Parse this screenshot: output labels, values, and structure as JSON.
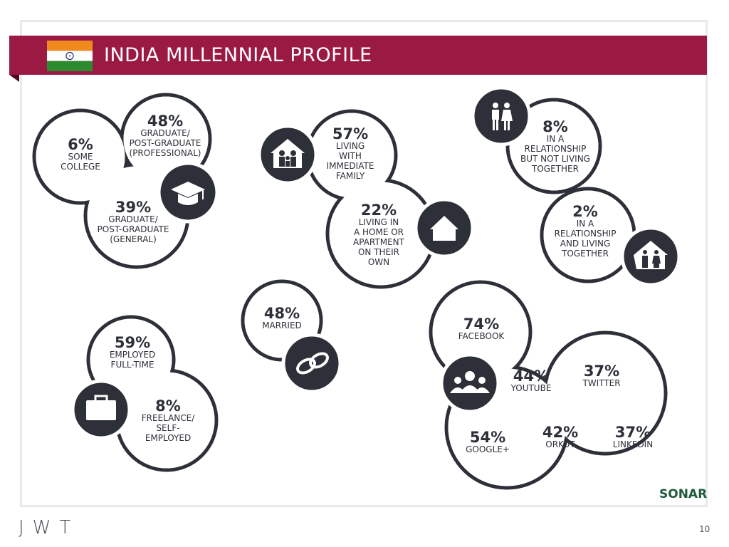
{
  "header": {
    "title": "INDIA MILLENNIAL PROFILE",
    "colors": {
      "banner": "#9b1a43",
      "saffron": "#f08a1c",
      "green": "#2e8a2e",
      "chakra": "#1b2f7a"
    }
  },
  "education": {
    "some_college": {
      "value": "6%",
      "label": "SOME COLLEGE"
    },
    "professional": {
      "value": "48%",
      "label_l1": "GRADUATE/",
      "label_l2": "POST-GRADUATE",
      "label_l3": "(PROFESSIONAL)"
    },
    "general": {
      "value": "39%",
      "label_l1": "GRADUATE/",
      "label_l2": "POST-GRADUATE",
      "label_l3": "(GENERAL)"
    },
    "icon": "graduation-cap-icon"
  },
  "living": {
    "family": {
      "value": "57%",
      "label_l1": "LIVING",
      "label_l2": "WITH",
      "label_l3": "IMMEDIATE",
      "label_l4": "FAMILY"
    },
    "own": {
      "value": "22%",
      "label_l1": "LIVING IN",
      "label_l2": "A HOME OR",
      "label_l3": "APARTMENT",
      "label_l4": "ON THEIR",
      "label_l5": "OWN"
    }
  },
  "relationship": {
    "not_living": {
      "value": "8%",
      "label_l1": "IN A",
      "label_l2": "RELATIONSHIP",
      "label_l3": "BUT NOT LIVING",
      "label_l4": "TOGETHER"
    },
    "living": {
      "value": "2%",
      "label_l1": "IN A",
      "label_l2": "RELATIONSHIP",
      "label_l3": "AND LIVING",
      "label_l4": "TOGETHER"
    }
  },
  "marital": {
    "married": {
      "value": "48%",
      "label": "MARRIED"
    }
  },
  "employment": {
    "full_time": {
      "value": "59%",
      "label_l1": "EMPLOYED",
      "label_l2": "FULL-TIME"
    },
    "freelance": {
      "value": "8%",
      "label_l1": "FREELANCE/",
      "label_l2": "SELF-",
      "label_l3": "EMPLOYED"
    }
  },
  "social": {
    "facebook": {
      "value": "74%",
      "label": "FACEBOOK"
    },
    "youtube": {
      "value": "44%",
      "label": "YOUTUBE"
    },
    "twitter": {
      "value": "37%",
      "label": "TWITTER"
    },
    "google": {
      "value": "54%",
      "label": "GOOGLE+"
    },
    "orkut": {
      "value": "42%",
      "label": "ORKUT"
    },
    "linkedin": {
      "value": "37%",
      "label": "LINKEDIN"
    }
  },
  "footer": {
    "brand": "JWT",
    "page": "10",
    "logo": "SONAR"
  }
}
